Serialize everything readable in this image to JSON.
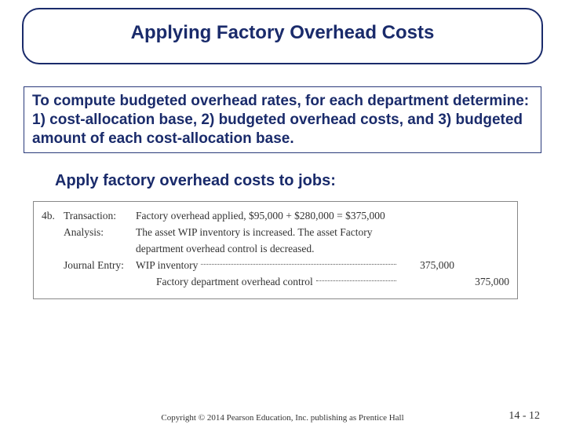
{
  "title": "Applying Factory Overhead Costs",
  "infobox": "To compute budgeted overhead rates, for each department determine: 1) cost-allocation base, 2) budgeted overhead costs, and 3) budgeted amount of each cost-allocation base.",
  "subtitle": "Apply factory overhead costs to jobs:",
  "entry": {
    "number": "4b.",
    "transaction_label": "Transaction:",
    "transaction_text": "Factory overhead applied, $95,000 + $280,000 = $375,000",
    "analysis_label": "Analysis:",
    "analysis_text": "The asset WIP inventory is increased. The asset Factory department overhead control is decreased.",
    "journal_label": "Journal Entry:",
    "line1_account": "WIP inventory",
    "line1_debit": "375,000",
    "line2_account": "Factory department overhead control",
    "line2_credit": "375,000"
  },
  "copyright": "Copyright © 2014 Pearson Education, Inc. publishing as Prentice Hall",
  "page": "14 - 12"
}
